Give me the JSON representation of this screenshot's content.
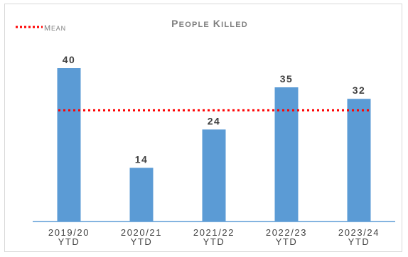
{
  "chart_data": {
    "type": "bar",
    "title": "People Killed",
    "categories": [
      [
        "2019/20",
        "YTD"
      ],
      [
        "2020/21",
        "YTD"
      ],
      [
        "2021/22",
        "YTD"
      ],
      [
        "2022/23",
        "YTD"
      ],
      [
        "2023/24",
        "YTD"
      ]
    ],
    "values": [
      40,
      14,
      24,
      35,
      32
    ],
    "mean": 29,
    "legend": {
      "label": "Mean",
      "position": "top-left"
    },
    "ylim": [
      0,
      43
    ],
    "grid": false,
    "colors": {
      "bar": "#5b9bd5",
      "mean_line": "#ff0000",
      "axis": "#5b9bd5",
      "title": "#7f7f7f",
      "labels": "#404040"
    }
  }
}
